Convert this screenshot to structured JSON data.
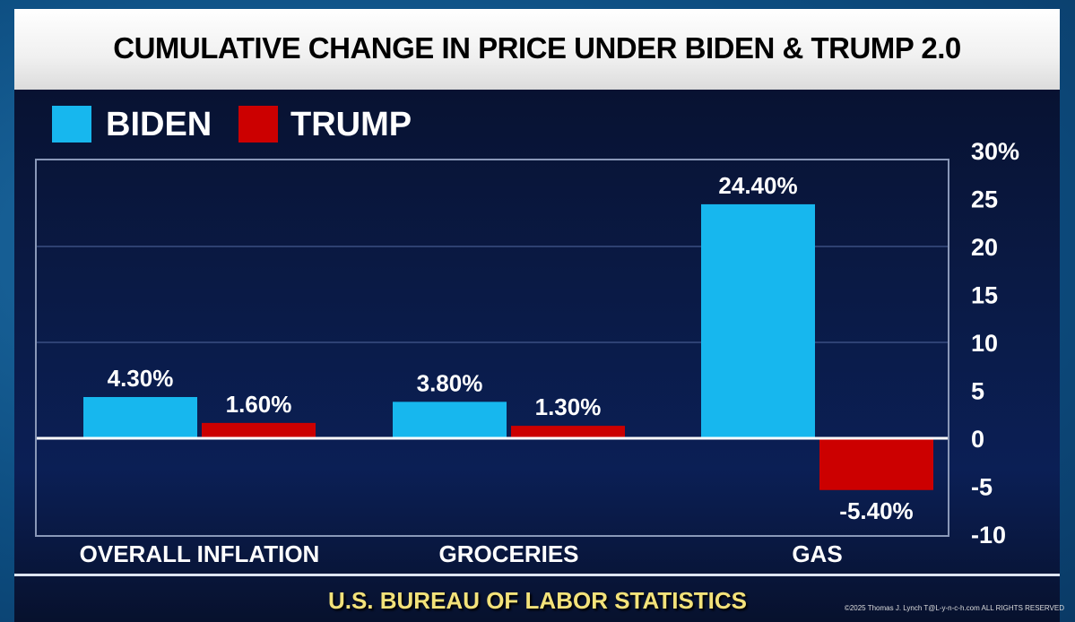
{
  "chart_data": {
    "type": "bar",
    "title": "CUMULATIVE CHANGE IN PRICE UNDER BIDEN & TRUMP 2.0",
    "categories": [
      "OVERALL INFLATION",
      "GROCERIES",
      "GAS"
    ],
    "series": [
      {
        "name": "BIDEN",
        "color": "#17b7ee",
        "values": [
          4.3,
          3.8,
          24.4
        ],
        "labels": [
          "4.30%",
          "3.80%",
          "24.40%"
        ]
      },
      {
        "name": "TRUMP",
        "color": "#cc0000",
        "values": [
          1.6,
          1.3,
          -5.4
        ],
        "labels": [
          "1.60%",
          "1.30%",
          "-5.40%"
        ]
      }
    ],
    "ylim": [
      -10,
      30
    ],
    "yticks": [
      "30%",
      "25",
      "20",
      "15",
      "10",
      "5",
      "0",
      "-5",
      "-10"
    ],
    "ytick_values": [
      30,
      25,
      20,
      15,
      10,
      5,
      0,
      -5,
      -10
    ],
    "y_axis_position": "right",
    "grid": true,
    "legend_position": "top-left",
    "source": "U.S. BUREAU OF LABOR STATISTICS"
  },
  "copyright": "©2025 Thomas J. Lynch T@L-y-n-c-h.com ALL RIGHTS RESERVED"
}
